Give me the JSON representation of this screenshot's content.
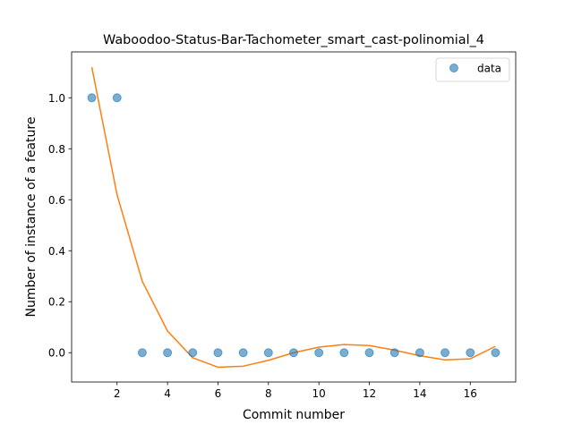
{
  "chart_data": {
    "type": "scatter",
    "title": "Waboodoo-Status-Bar-Tachometer_smart_cast-polinomial_4",
    "xlabel": "Commit number",
    "ylabel": "Number of instance of a feature",
    "xlim": [
      0.2,
      17.8
    ],
    "ylim": [
      -0.115,
      1.18
    ],
    "x_ticks": [
      2,
      4,
      6,
      8,
      10,
      12,
      14,
      16
    ],
    "x_tick_labels": [
      "2",
      "4",
      "6",
      "8",
      "10",
      "12",
      "14",
      "16"
    ],
    "y_ticks": [
      0.0,
      0.2,
      0.4,
      0.6,
      0.8,
      1.0
    ],
    "y_tick_labels": [
      "0.0",
      "0.2",
      "0.4",
      "0.6",
      "0.8",
      "1.0"
    ],
    "legend_position": "upper right",
    "series": [
      {
        "name": "data",
        "kind": "points",
        "color": "#1f77b4",
        "x": [
          1,
          2,
          3,
          4,
          5,
          6,
          7,
          8,
          9,
          10,
          11,
          12,
          13,
          14,
          15,
          16,
          17
        ],
        "y": [
          1,
          1,
          0,
          0,
          0,
          0,
          0,
          0,
          0,
          0,
          0,
          0,
          0,
          0,
          0,
          0,
          0
        ]
      },
      {
        "kind": "line",
        "color": "#ff7f0e",
        "x": [
          1,
          2,
          3,
          4,
          5,
          6,
          7,
          8,
          9,
          10,
          11,
          12,
          13,
          14,
          15,
          16,
          17
        ],
        "y": [
          1.12,
          0.62,
          0.28,
          0.085,
          -0.02,
          -0.057,
          -0.053,
          -0.03,
          0.0,
          0.022,
          0.032,
          0.028,
          0.01,
          -0.012,
          -0.028,
          -0.024,
          0.025
        ]
      }
    ]
  }
}
